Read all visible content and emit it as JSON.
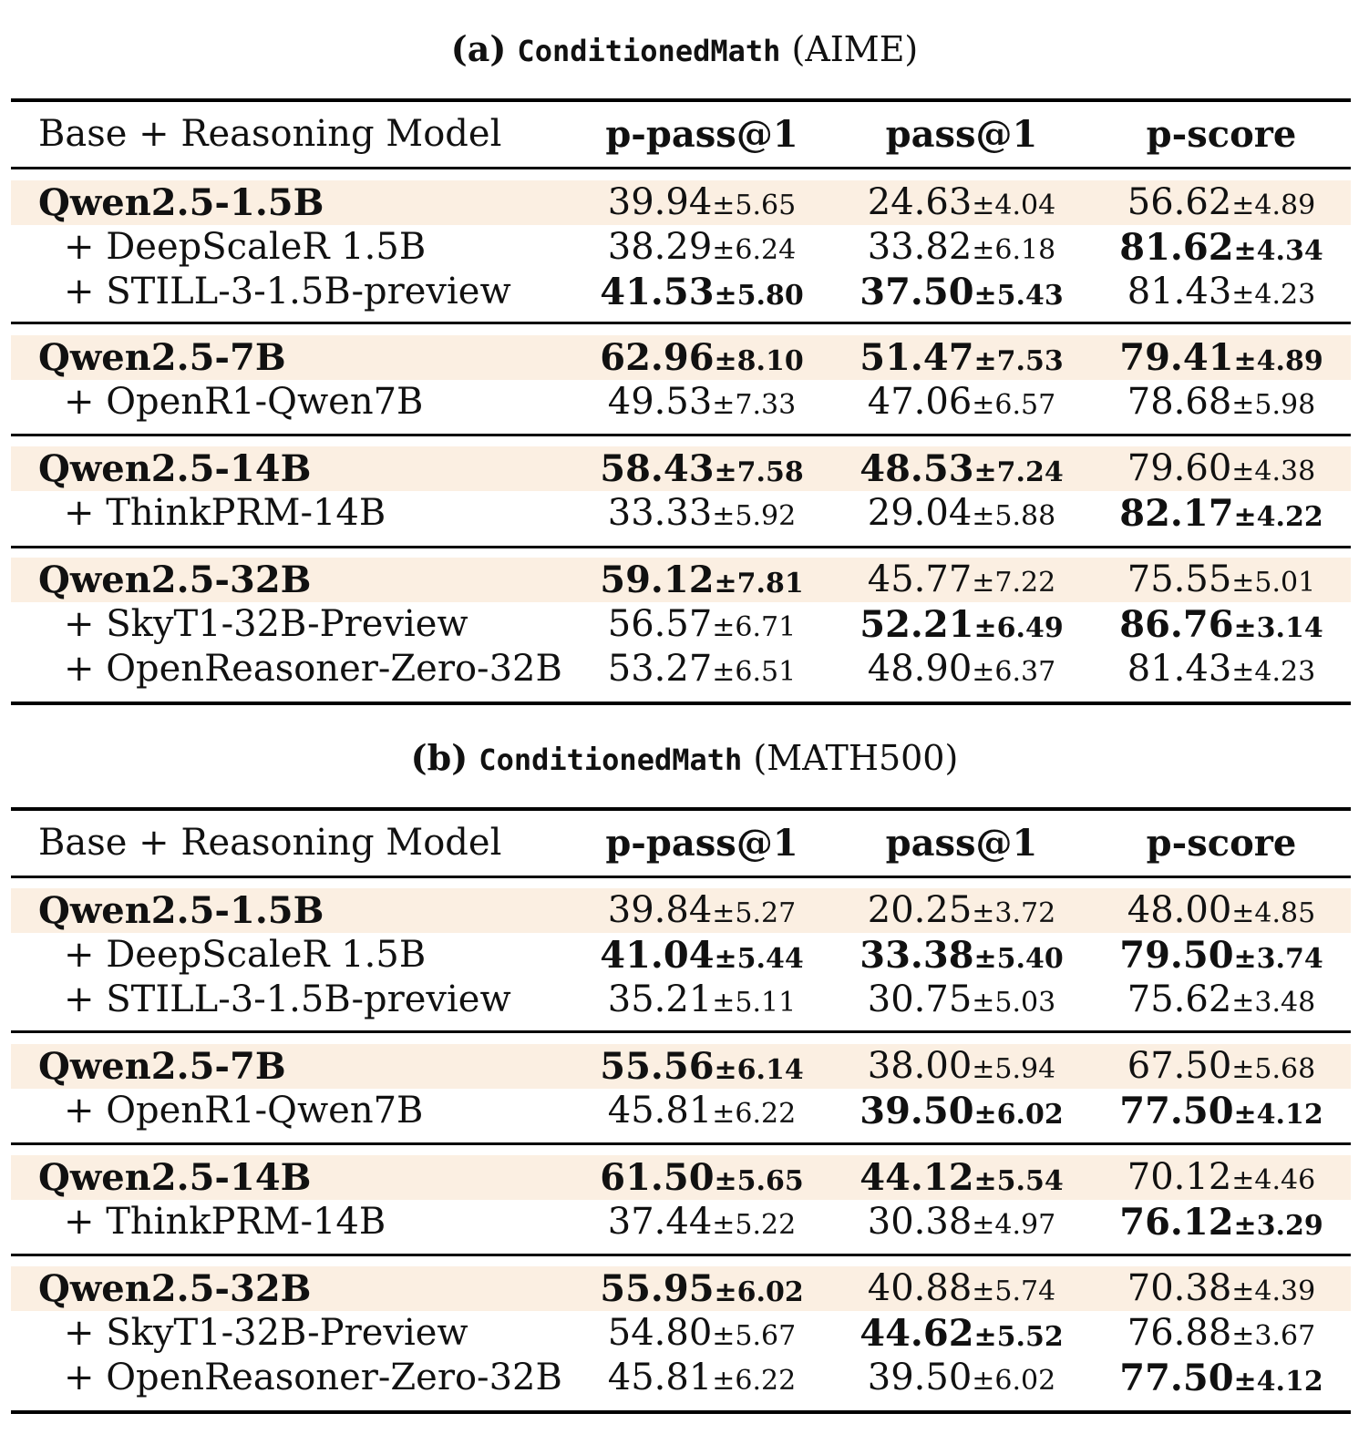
{
  "tables": [
    {
      "caption_prefix": "(a)",
      "caption_name": "ConditionedMath",
      "caption_suffix": "(AIME)",
      "headers": [
        "Base + Reasoning Model",
        "p-pass@1",
        "pass@1",
        "p-score"
      ],
      "groups": [
        {
          "rows": [
            {
              "name": "Qwen2.5-1.5B",
              "base": true,
              "cells": [
                {
                  "mean": "39.94",
                  "std": "±5.65",
                  "bold": false
                },
                {
                  "mean": "24.63",
                  "std": "±4.04",
                  "bold": false
                },
                {
                  "mean": "56.62",
                  "std": "±4.89",
                  "bold": false
                }
              ]
            },
            {
              "name": "+ DeepScaleR 1.5B",
              "base": false,
              "cells": [
                {
                  "mean": "38.29",
                  "std": "±6.24",
                  "bold": false
                },
                {
                  "mean": "33.82",
                  "std": "±6.18",
                  "bold": false
                },
                {
                  "mean": "81.62",
                  "std": "±4.34",
                  "bold": true
                }
              ]
            },
            {
              "name": "+ STILL-3-1.5B-preview",
              "base": false,
              "cells": [
                {
                  "mean": "41.53",
                  "std": "±5.80",
                  "bold": true
                },
                {
                  "mean": "37.50",
                  "std": "±5.43",
                  "bold": true
                },
                {
                  "mean": "81.43",
                  "std": "±4.23",
                  "bold": false
                }
              ]
            }
          ]
        },
        {
          "rows": [
            {
              "name": "Qwen2.5-7B",
              "base": true,
              "cells": [
                {
                  "mean": "62.96",
                  "std": "±8.10",
                  "bold": true
                },
                {
                  "mean": "51.47",
                  "std": "±7.53",
                  "bold": true
                },
                {
                  "mean": "79.41",
                  "std": "±4.89",
                  "bold": true
                }
              ]
            },
            {
              "name": "+ OpenR1-Qwen7B",
              "base": false,
              "cells": [
                {
                  "mean": "49.53",
                  "std": "±7.33",
                  "bold": false
                },
                {
                  "mean": "47.06",
                  "std": "±6.57",
                  "bold": false
                },
                {
                  "mean": "78.68",
                  "std": "±5.98",
                  "bold": false
                }
              ]
            }
          ]
        },
        {
          "rows": [
            {
              "name": "Qwen2.5-14B",
              "base": true,
              "cells": [
                {
                  "mean": "58.43",
                  "std": "±7.58",
                  "bold": true
                },
                {
                  "mean": "48.53",
                  "std": "±7.24",
                  "bold": true
                },
                {
                  "mean": "79.60",
                  "std": "±4.38",
                  "bold": false
                }
              ]
            },
            {
              "name": "+ ThinkPRM-14B",
              "base": false,
              "cells": [
                {
                  "mean": "33.33",
                  "std": "±5.92",
                  "bold": false
                },
                {
                  "mean": "29.04",
                  "std": "±5.88",
                  "bold": false
                },
                {
                  "mean": "82.17",
                  "std": "±4.22",
                  "bold": true
                }
              ]
            }
          ]
        },
        {
          "rows": [
            {
              "name": "Qwen2.5-32B",
              "base": true,
              "cells": [
                {
                  "mean": "59.12",
                  "std": "±7.81",
                  "bold": true
                },
                {
                  "mean": "45.77",
                  "std": "±7.22",
                  "bold": false
                },
                {
                  "mean": "75.55",
                  "std": "±5.01",
                  "bold": false
                }
              ]
            },
            {
              "name": "+ SkyT1-32B-Preview",
              "base": false,
              "cells": [
                {
                  "mean": "56.57",
                  "std": "±6.71",
                  "bold": false
                },
                {
                  "mean": "52.21",
                  "std": "±6.49",
                  "bold": true
                },
                {
                  "mean": "86.76",
                  "std": "±3.14",
                  "bold": true
                }
              ]
            },
            {
              "name": "+ OpenReasoner-Zero-32B",
              "base": false,
              "cells": [
                {
                  "mean": "53.27",
                  "std": "±6.51",
                  "bold": false
                },
                {
                  "mean": "48.90",
                  "std": "±6.37",
                  "bold": false
                },
                {
                  "mean": "81.43",
                  "std": "±4.23",
                  "bold": false
                }
              ]
            }
          ]
        }
      ]
    },
    {
      "caption_prefix": "(b)",
      "caption_name": "ConditionedMath",
      "caption_suffix": "(MATH500)",
      "headers": [
        "Base + Reasoning Model",
        "p-pass@1",
        "pass@1",
        "p-score"
      ],
      "groups": [
        {
          "rows": [
            {
              "name": "Qwen2.5-1.5B",
              "base": true,
              "cells": [
                {
                  "mean": "39.84",
                  "std": "±5.27",
                  "bold": false
                },
                {
                  "mean": "20.25",
                  "std": "±3.72",
                  "bold": false
                },
                {
                  "mean": "48.00",
                  "std": "±4.85",
                  "bold": false
                }
              ]
            },
            {
              "name": "+ DeepScaleR 1.5B",
              "base": false,
              "cells": [
                {
                  "mean": "41.04",
                  "std": "±5.44",
                  "bold": true
                },
                {
                  "mean": "33.38",
                  "std": "±5.40",
                  "bold": true
                },
                {
                  "mean": "79.50",
                  "std": "±3.74",
                  "bold": true
                }
              ]
            },
            {
              "name": "+ STILL-3-1.5B-preview",
              "base": false,
              "cells": [
                {
                  "mean": "35.21",
                  "std": "±5.11",
                  "bold": false
                },
                {
                  "mean": "30.75",
                  "std": "±5.03",
                  "bold": false
                },
                {
                  "mean": "75.62",
                  "std": "±3.48",
                  "bold": false
                }
              ]
            }
          ]
        },
        {
          "rows": [
            {
              "name": "Qwen2.5-7B",
              "base": true,
              "cells": [
                {
                  "mean": "55.56",
                  "std": "±6.14",
                  "bold": true
                },
                {
                  "mean": "38.00",
                  "std": "±5.94",
                  "bold": false
                },
                {
                  "mean": "67.50",
                  "std": "±5.68",
                  "bold": false
                }
              ]
            },
            {
              "name": "+ OpenR1-Qwen7B",
              "base": false,
              "cells": [
                {
                  "mean": "45.81",
                  "std": "±6.22",
                  "bold": false
                },
                {
                  "mean": "39.50",
                  "std": "±6.02",
                  "bold": true
                },
                {
                  "mean": "77.50",
                  "std": "±4.12",
                  "bold": true
                }
              ]
            }
          ]
        },
        {
          "rows": [
            {
              "name": "Qwen2.5-14B",
              "base": true,
              "cells": [
                {
                  "mean": "61.50",
                  "std": "±5.65",
                  "bold": true
                },
                {
                  "mean": "44.12",
                  "std": "±5.54",
                  "bold": true
                },
                {
                  "mean": "70.12",
                  "std": "±4.46",
                  "bold": false
                }
              ]
            },
            {
              "name": "+ ThinkPRM-14B",
              "base": false,
              "cells": [
                {
                  "mean": "37.44",
                  "std": "±5.22",
                  "bold": false
                },
                {
                  "mean": "30.38",
                  "std": "±4.97",
                  "bold": false
                },
                {
                  "mean": "76.12",
                  "std": "±3.29",
                  "bold": true
                }
              ]
            }
          ]
        },
        {
          "rows": [
            {
              "name": "Qwen2.5-32B",
              "base": true,
              "cells": [
                {
                  "mean": "55.95",
                  "std": "±6.02",
                  "bold": true
                },
                {
                  "mean": "40.88",
                  "std": "±5.74",
                  "bold": false
                },
                {
                  "mean": "70.38",
                  "std": "±4.39",
                  "bold": false
                }
              ]
            },
            {
              "name": "+ SkyT1-32B-Preview",
              "base": false,
              "cells": [
                {
                  "mean": "54.80",
                  "std": "±5.67",
                  "bold": false
                },
                {
                  "mean": "44.62",
                  "std": "±5.52",
                  "bold": true
                },
                {
                  "mean": "76.88",
                  "std": "±3.67",
                  "bold": false
                }
              ]
            },
            {
              "name": "+ OpenReasoner-Zero-32B",
              "base": false,
              "cells": [
                {
                  "mean": "45.81",
                  "std": "±6.22",
                  "bold": false
                },
                {
                  "mean": "39.50",
                  "std": "±6.02",
                  "bold": false
                },
                {
                  "mean": "77.50",
                  "std": "±4.12",
                  "bold": true
                }
              ]
            }
          ]
        }
      ]
    }
  ],
  "styles": {
    "base_row_shade": "#fbefe2",
    "rule_color": "#000000"
  }
}
